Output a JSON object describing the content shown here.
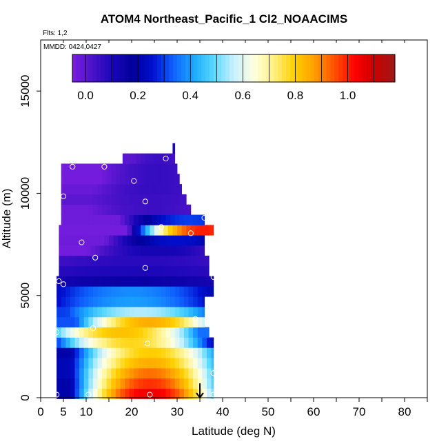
{
  "title": "ATOM4 Northeast_Pacific_1 Cl2_NOAACIMS",
  "flights_label": "Flts: 1,2",
  "dates_label": "MMDD: 0424,0427",
  "chart_data": {
    "type": "heatmap",
    "title": "ATOM4 Northeast_Pacific_1 Cl2_NOAACIMS",
    "xlabel": "Latitude (deg N)",
    "ylabel": "Altitude (m)",
    "xlim": [
      0,
      85
    ],
    "ylim": [
      0,
      17500
    ],
    "x_ticks_labeled": [
      0,
      5,
      10,
      20,
      30,
      40,
      50,
      60,
      70,
      80
    ],
    "x_ticks_minor": [
      15,
      25,
      35,
      45,
      55,
      65,
      75,
      85
    ],
    "y_ticks": [
      0,
      5000,
      10000,
      15000
    ],
    "colorbar": {
      "min": -0.05,
      "max": 1.18,
      "tick_values": [
        0.0,
        0.2,
        0.4,
        0.6,
        0.8,
        1.0
      ],
      "tick_labels": [
        "0.0",
        "0.2",
        "0.4",
        "0.6",
        "0.8",
        "1.0"
      ],
      "colors": [
        "#7a1ee0",
        "#4a12c8",
        "#1a06b8",
        "#00009a",
        "#0010d0",
        "#1060ff",
        "#1aa8ff",
        "#58d8ff",
        "#c8f0ff",
        "#ffffe0",
        "#fff080",
        "#ffd000",
        "#ffa000",
        "#ff5000",
        "#ff0000",
        "#cc0000",
        "#9b1a1a"
      ],
      "position": "top"
    },
    "profile": [
      {
        "alt": 200,
        "x0": 3.5,
        "x1": 38,
        "peak_lat": 24,
        "peak": 1.05,
        "edge": 0.2
      },
      {
        "alt": 700,
        "x0": 3.5,
        "x1": 38,
        "peak_lat": 24,
        "peak": 0.98,
        "edge": 0.2
      },
      {
        "alt": 1200,
        "x0": 3.5,
        "x1": 38,
        "peak_lat": 24,
        "peak": 0.92,
        "edge": 0.22
      },
      {
        "alt": 1700,
        "x0": 3.5,
        "x1": 38,
        "peak_lat": 24,
        "peak": 0.85,
        "edge": 0.22
      },
      {
        "alt": 2200,
        "x0": 3.5,
        "x1": 38,
        "peak_lat": 24,
        "peak": 0.8,
        "edge": 0.2
      },
      {
        "alt": 2700,
        "x0": 3.5,
        "x1": 38,
        "peak_lat": 20,
        "peak": 0.78,
        "edge": 0.25
      },
      {
        "alt": 3200,
        "x0": 3.5,
        "x1": 37,
        "peak_lat": 18,
        "peak": 0.82,
        "edge": 0.35
      },
      {
        "alt": 3700,
        "x0": 3.5,
        "x1": 36,
        "peak_lat": 24,
        "peak": 0.85,
        "edge": 0.32
      },
      {
        "alt": 4200,
        "x0": 3.5,
        "x1": 36,
        "peak_lat": 22,
        "peak": 0.55,
        "edge": 0.3
      },
      {
        "alt": 4700,
        "x0": 3.5,
        "x1": 36,
        "peak_lat": 20,
        "peak": 0.4,
        "edge": 0.25
      },
      {
        "alt": 5200,
        "x0": 3.5,
        "x1": 38,
        "peak_lat": 20,
        "peak": 0.38,
        "edge": 0.22
      },
      {
        "alt": 5700,
        "x0": 3.5,
        "x1": 38,
        "peak_lat": 20,
        "peak": 0.15,
        "edge": 0.12
      },
      {
        "alt": 6200,
        "x0": 4,
        "x1": 37,
        "peak_lat": 20,
        "peak": 0.1,
        "edge": 0.08
      },
      {
        "alt": 6700,
        "x0": 4,
        "x1": 37,
        "peak_lat": 22,
        "peak": 0.08,
        "edge": 0.05
      },
      {
        "alt": 7200,
        "x0": 4,
        "x1": 36,
        "peak_lat": 26,
        "peak": 0.12,
        "edge": -0.04
      },
      {
        "alt": 7700,
        "x0": 4,
        "x1": 36,
        "peak_lat": 30,
        "peak": 0.25,
        "edge": -0.03
      },
      {
        "alt": 8200,
        "x0": 4,
        "x1": 38,
        "peak_lat": 36,
        "peak": 1.0,
        "edge": -0.04
      },
      {
        "alt": 8700,
        "x0": 4.5,
        "x1": 36,
        "peak_lat": 33,
        "peak": 0.3,
        "edge": -0.03
      },
      {
        "alt": 9200,
        "x0": 4.5,
        "x1": 33,
        "peak_lat": 25,
        "peak": 0.05,
        "edge": -0.03
      },
      {
        "alt": 9700,
        "x0": 4.5,
        "x1": 32,
        "peak_lat": 25,
        "peak": 0.05,
        "edge": 0.0
      },
      {
        "alt": 10200,
        "x0": 4.5,
        "x1": 31,
        "peak_lat": 25,
        "peak": 0.06,
        "edge": -0.02
      },
      {
        "alt": 10700,
        "x0": 4.5,
        "x1": 30.5,
        "peak_lat": 26,
        "peak": 0.06,
        "edge": -0.04
      },
      {
        "alt": 11200,
        "x0": 4.5,
        "x1": 30,
        "peak_lat": 26,
        "peak": 0.06,
        "edge": -0.04
      },
      {
        "alt": 11700,
        "x0": 18,
        "x1": 29.5,
        "peak_lat": 26,
        "peak": 0.05,
        "edge": 0.0
      },
      {
        "alt": 12200,
        "x0": 29,
        "x1": 29.5,
        "peak_lat": 29,
        "peak": 0.1,
        "edge": 0.1
      }
    ],
    "sample_points": [
      {
        "lat": 7,
        "alt": 11300
      },
      {
        "lat": 14,
        "alt": 11300
      },
      {
        "lat": 27.5,
        "alt": 11700
      },
      {
        "lat": 20.5,
        "alt": 10600
      },
      {
        "lat": 5,
        "alt": 9850
      },
      {
        "lat": 23,
        "alt": 9600
      },
      {
        "lat": 36,
        "alt": 8800
      },
      {
        "lat": 26.5,
        "alt": 8350
      },
      {
        "lat": 33,
        "alt": 8050
      },
      {
        "lat": 9,
        "alt": 7600
      },
      {
        "lat": 12,
        "alt": 6850
      },
      {
        "lat": 23,
        "alt": 6350
      },
      {
        "lat": 38,
        "alt": 5900
      },
      {
        "lat": 4,
        "alt": 5700
      },
      {
        "lat": 5,
        "alt": 5550
      },
      {
        "lat": 34,
        "alt": 3850
      },
      {
        "lat": 11.5,
        "alt": 3400
      },
      {
        "lat": 3.5,
        "alt": 3200
      },
      {
        "lat": 23.5,
        "alt": 2650
      },
      {
        "lat": 38,
        "alt": 1200
      },
      {
        "lat": 3.5,
        "alt": 150
      },
      {
        "lat": 10.5,
        "alt": 150
      },
      {
        "lat": 24,
        "alt": 150
      },
      {
        "lat": 38,
        "alt": 150
      }
    ],
    "arrow": {
      "lat": 35,
      "alt_top": 700,
      "alt_tip": 0
    }
  }
}
